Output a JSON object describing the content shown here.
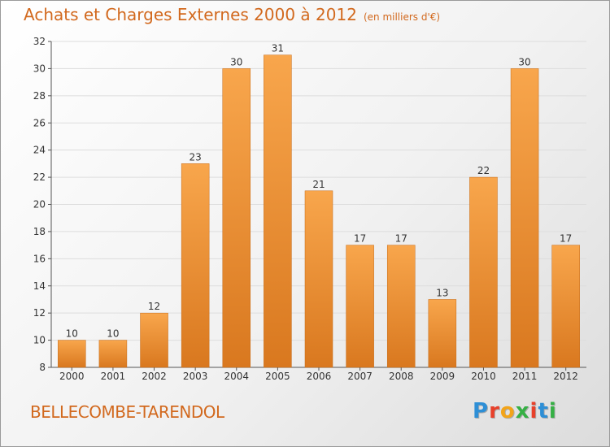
{
  "title": "Achats et Charges Externes 2000 à 2012",
  "subtitle": "(en milliers d'€)",
  "town": "BELLECOMBE-TARENDOL",
  "logo": {
    "letters": [
      "P",
      "r",
      "o",
      "x",
      "i",
      "t",
      "i"
    ],
    "colors": [
      "#2e8fd6",
      "#e8402a",
      "#f2a41a",
      "#36b045",
      "#e8402a",
      "#2e8fd6",
      "#36b045"
    ]
  },
  "colors": {
    "bar_top": "#f8a64c",
    "bar_bottom": "#d9781f",
    "title": "#d2691e",
    "grid": "#dddddd"
  },
  "chart_data": {
    "type": "bar",
    "categories": [
      "2000",
      "2001",
      "2002",
      "2003",
      "2004",
      "2005",
      "2006",
      "2007",
      "2008",
      "2009",
      "2010",
      "2011",
      "2012"
    ],
    "values": [
      10,
      10,
      12,
      23,
      30,
      31,
      21,
      17,
      17,
      13,
      22,
      30,
      17
    ],
    "yticks": [
      8,
      10,
      12,
      14,
      16,
      18,
      20,
      22,
      24,
      26,
      28,
      30,
      32
    ],
    "ylim": [
      8,
      32
    ],
    "grid": true,
    "title": "Achats et Charges Externes 2000 à 2012",
    "subtitle": "(en milliers d'€)"
  }
}
